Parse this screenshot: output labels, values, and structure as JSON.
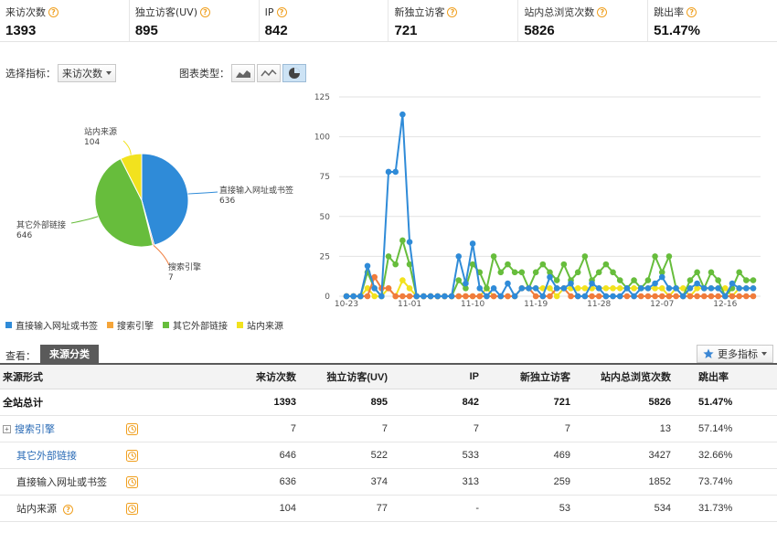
{
  "kpis": [
    {
      "label": "来访次数",
      "value": "1393"
    },
    {
      "label": "独立访客(UV)",
      "value": "895"
    },
    {
      "label": "IP",
      "value": "842"
    },
    {
      "label": "新独立访客",
      "value": "721"
    },
    {
      "label": "站内总浏览次数",
      "value": "5826"
    },
    {
      "label": "跳出率",
      "value": "51.47%"
    }
  ],
  "controls": {
    "metric_label": "选择指标：",
    "metric_value": "来访次数",
    "chart_type_label": "图表类型："
  },
  "pie_labels": {
    "direct": {
      "name": "直接输入网址或书签",
      "value": "636"
    },
    "search": {
      "name": "搜索引擎",
      "value": "7"
    },
    "other": {
      "name": "其它外部链接",
      "value": "646"
    },
    "internal": {
      "name": "站内来源",
      "value": "104"
    }
  },
  "legend": {
    "direct": "直接输入网址或书签",
    "search": "搜索引擎",
    "other": "其它外部链接",
    "internal": "站内来源"
  },
  "colors": {
    "direct": "#2f8bd8",
    "search": "#f07c3c",
    "other": "#67bd3c",
    "internal": "#f2e21e",
    "accent": "#2a6bb6"
  },
  "chart_data": [
    {
      "type": "pie",
      "title": "",
      "categories": [
        "直接输入网址或书签",
        "搜索引擎",
        "其它外部链接",
        "站内来源"
      ],
      "values": [
        636,
        7,
        646,
        104
      ]
    },
    {
      "type": "line",
      "title": "",
      "xlabel": "",
      "ylabel": "",
      "ylim": [
        0,
        125
      ],
      "yticks": [
        0,
        25,
        50,
        75,
        100,
        125
      ],
      "x_tick_labels": [
        "10-23",
        "11-01",
        "11-10",
        "11-19",
        "11-28",
        "12-07",
        "12-16"
      ],
      "x_tick_indices": [
        0,
        9,
        18,
        27,
        36,
        45,
        54
      ],
      "num_points": 59,
      "series": [
        {
          "name": "直接输入网址或书签",
          "values": [
            0,
            0,
            0,
            19,
            5,
            0,
            78,
            78,
            114,
            34,
            0,
            0,
            0,
            0,
            0,
            0,
            25,
            8,
            33,
            5,
            0,
            5,
            0,
            8,
            0,
            5,
            5,
            5,
            0,
            12,
            5,
            5,
            8,
            0,
            0,
            8,
            5,
            0,
            0,
            0,
            5,
            0,
            5,
            5,
            8,
            12,
            5,
            5,
            0,
            5,
            8,
            5,
            5,
            5,
            0,
            8,
            5,
            5,
            5
          ]
        },
        {
          "name": "搜索引擎",
          "values": [
            0,
            0,
            0,
            0,
            12,
            5,
            5,
            0,
            0,
            0,
            0,
            0,
            0,
            0,
            0,
            0,
            0,
            0,
            0,
            0,
            0,
            0,
            0,
            0,
            0,
            5,
            5,
            0,
            0,
            0,
            5,
            5,
            0,
            0,
            0,
            0,
            0,
            0,
            0,
            0,
            0,
            0,
            0,
            0,
            0,
            0,
            0,
            0,
            0,
            0,
            0,
            0,
            0,
            0,
            0,
            0,
            0,
            0,
            0
          ]
        },
        {
          "name": "其它外部链接",
          "values": [
            0,
            0,
            0,
            15,
            5,
            0,
            25,
            20,
            35,
            20,
            0,
            0,
            0,
            0,
            0,
            0,
            10,
            5,
            20,
            15,
            5,
            25,
            15,
            20,
            15,
            15,
            5,
            15,
            20,
            15,
            10,
            20,
            10,
            15,
            25,
            10,
            15,
            20,
            15,
            10,
            5,
            10,
            5,
            10,
            25,
            15,
            25,
            5,
            0,
            10,
            15,
            5,
            15,
            10,
            0,
            5,
            15,
            10,
            10
          ]
        },
        {
          "name": "站内来源",
          "values": [
            0,
            0,
            0,
            5,
            0,
            0,
            5,
            0,
            10,
            5,
            0,
            0,
            0,
            0,
            0,
            0,
            0,
            0,
            0,
            0,
            5,
            0,
            0,
            0,
            0,
            5,
            5,
            5,
            5,
            5,
            0,
            5,
            5,
            5,
            5,
            5,
            5,
            5,
            5,
            5,
            5,
            5,
            5,
            5,
            5,
            5,
            0,
            5,
            5,
            0,
            5,
            5,
            5,
            5,
            5,
            0,
            5,
            5,
            5
          ]
        }
      ]
    }
  ],
  "tabs": {
    "view_label": "查看：",
    "active_tab": "来源分类",
    "more_metrics": "更多指标"
  },
  "table": {
    "headers": [
      "来源形式",
      "来访次数",
      "独立访客(UV)",
      "IP",
      "新独立访客",
      "站内总浏览次数",
      "跳出率"
    ],
    "total": {
      "label": "全站总计",
      "cells": [
        "1393",
        "895",
        "842",
        "721",
        "5826",
        "51.47%"
      ]
    },
    "rows": [
      {
        "label": "搜索引擎",
        "cells": [
          "7",
          "7",
          "7",
          "7",
          "13",
          "57.14%"
        ]
      },
      {
        "label": "其它外部链接",
        "cells": [
          "646",
          "522",
          "533",
          "469",
          "3427",
          "32.66%"
        ]
      },
      {
        "label": "直接输入网址或书签",
        "cells": [
          "636",
          "374",
          "313",
          "259",
          "1852",
          "73.74%"
        ]
      },
      {
        "label": "站内来源",
        "cells": [
          "104",
          "77",
          "-",
          "53",
          "534",
          "31.73%"
        ]
      }
    ]
  }
}
